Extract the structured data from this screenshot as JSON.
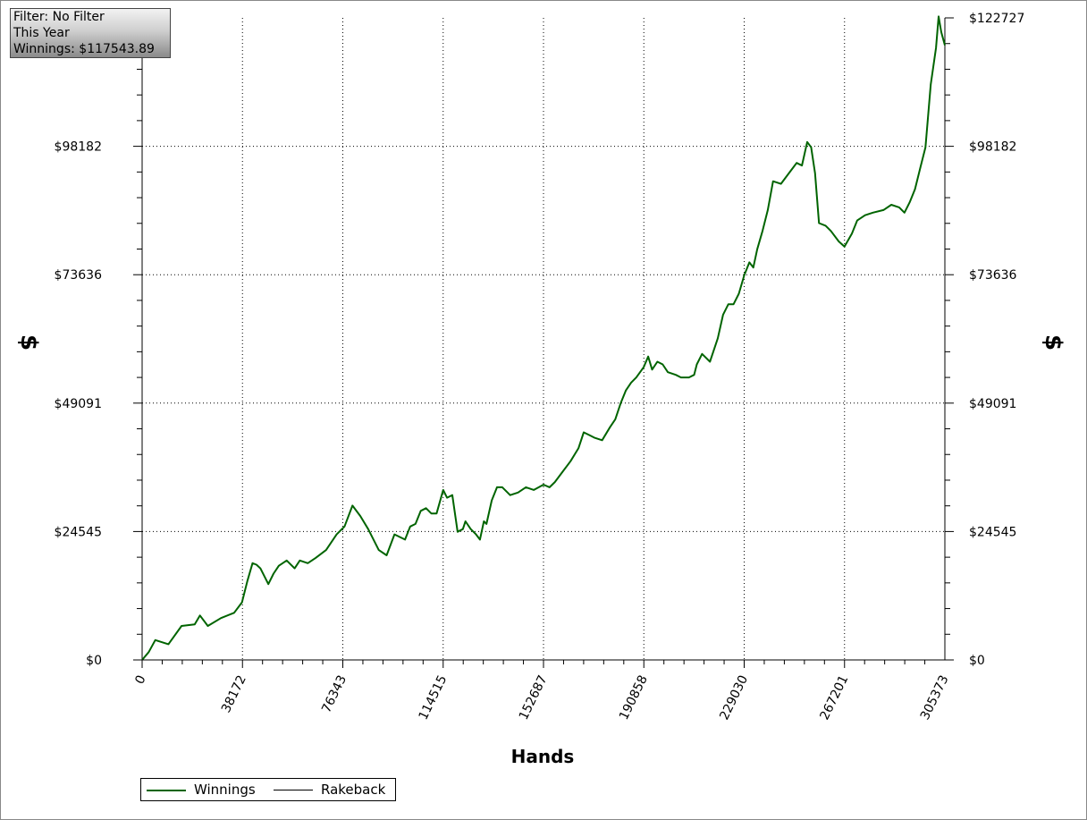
{
  "chart_data": {
    "type": "line",
    "title": "",
    "xlabel": "Hands",
    "ylabel": "$",
    "xlim": [
      0,
      305373
    ],
    "ylim": [
      0,
      122727
    ],
    "x_ticks": [
      0,
      38172,
      76343,
      114515,
      152687,
      190858,
      229030,
      267201,
      305373
    ],
    "x_tick_labels": [
      "0",
      "38172",
      "76343",
      "114515",
      "152687",
      "190858",
      "229030",
      "267201",
      "305373"
    ],
    "y_ticks": [
      0,
      24545,
      49091,
      73636,
      98182,
      122727
    ],
    "y_tick_labels": [
      "$0",
      "$24545",
      "$49091",
      "$73636",
      "$98182",
      "$122727"
    ],
    "grid": true,
    "legend_position": "bottom-left",
    "series": [
      {
        "name": "Winnings",
        "color": "#006400",
        "x": [
          0,
          2500,
          5000,
          10000,
          15000,
          20000,
          22000,
          25000,
          30000,
          35000,
          38000,
          40000,
          42000,
          43500,
          45000,
          48000,
          50000,
          52000,
          55000,
          58000,
          60000,
          63000,
          66000,
          70000,
          74000,
          77000,
          80000,
          83000,
          86000,
          90000,
          93000,
          96000,
          98000,
          100000,
          102000,
          104000,
          106000,
          108000,
          110000,
          112000,
          114515,
          116000,
          118000,
          120000,
          122000,
          123000,
          125000,
          127000,
          128500,
          130000,
          131000,
          133000,
          135000,
          137000,
          140000,
          143000,
          146000,
          149000,
          152687,
          155000,
          157000,
          160000,
          163000,
          166000,
          168000,
          170000,
          172000,
          175000,
          178000,
          180000,
          182000,
          184000,
          186000,
          188000,
          190858,
          192500,
          194000,
          196000,
          198000,
          200000,
          203000,
          205000,
          208000,
          210000,
          211000,
          213000,
          216000,
          219000,
          221000,
          223000,
          225000,
          227000,
          229030,
          231000,
          232500,
          234000,
          236000,
          238000,
          240000,
          243000,
          246000,
          249000,
          251000,
          253000,
          254500,
          256000,
          257500,
          260000,
          262000,
          265000,
          267201,
          270000,
          272000,
          275000,
          278000,
          282000,
          285000,
          288000,
          290000,
          292000,
          294000,
          296000,
          298000,
          300000,
          302000,
          303000,
          304000,
          305373
        ],
        "values": [
          0,
          1500,
          3800,
          3000,
          6500,
          6800,
          8500,
          6500,
          8000,
          9000,
          11000,
          15000,
          18500,
          18200,
          17500,
          14500,
          16500,
          18000,
          19000,
          17500,
          19000,
          18500,
          19500,
          21000,
          24000,
          25500,
          29500,
          27500,
          25000,
          21000,
          20000,
          24000,
          23500,
          23000,
          25500,
          26000,
          28500,
          29000,
          28000,
          28000,
          32500,
          31000,
          31500,
          24500,
          25000,
          26500,
          25000,
          24000,
          23000,
          26500,
          26000,
          30500,
          33000,
          33000,
          31500,
          32000,
          33000,
          32500,
          33500,
          33000,
          34000,
          36000,
          38000,
          40500,
          43500,
          43000,
          42500,
          42000,
          44500,
          46000,
          49000,
          51500,
          53000,
          54000,
          56000,
          58000,
          55500,
          57000,
          56500,
          55000,
          54500,
          54000,
          54000,
          54500,
          56500,
          58500,
          57000,
          61500,
          66000,
          68000,
          68000,
          70000,
          73500,
          76000,
          75000,
          78500,
          82000,
          86000,
          91500,
          91000,
          93000,
          95000,
          94500,
          99000,
          98000,
          93000,
          83500,
          83000,
          82000,
          80000,
          79000,
          81500,
          84000,
          85000,
          85500,
          86000,
          87000,
          86500,
          85500,
          87500,
          90000,
          94000,
          98000,
          110000,
          117000,
          123000,
          120000,
          117500
        ]
      },
      {
        "name": "Rakeback",
        "color": "#000000",
        "x": [
          0,
          305373
        ],
        "values": [
          0,
          0
        ]
      }
    ]
  },
  "info_box": {
    "filter": "Filter: No Filter",
    "period": "This Year",
    "winnings": "Winnings: $117543.89"
  }
}
